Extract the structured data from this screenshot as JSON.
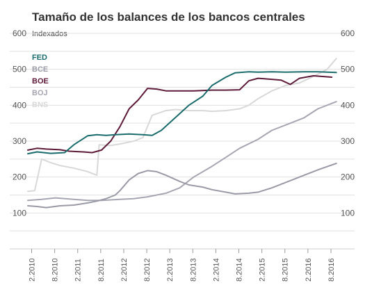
{
  "chart_data": {
    "type": "line",
    "title": "Tamaño de los balances de los bancos centrales",
    "ylabel": "Indexados",
    "xlabel": "",
    "ylim": [
      0,
      600
    ],
    "xlim": [
      2010.0,
      2016.75
    ],
    "yticks": [
      100,
      200,
      300,
      400,
      500,
      600
    ],
    "xticks": [
      {
        "label": "2.2010",
        "x": 2010.0833
      },
      {
        "label": "8.2010",
        "x": 2010.5833
      },
      {
        "label": "2.2011",
        "x": 2011.0833
      },
      {
        "label": "8.2011",
        "x": 2011.5833
      },
      {
        "label": "2.2012",
        "x": 2012.0833
      },
      {
        "label": "8.2012",
        "x": 2012.5833
      },
      {
        "label": "2.2013",
        "x": 2013.0833
      },
      {
        "label": "8.2013",
        "x": 2013.5833
      },
      {
        "label": "2.2014",
        "x": 2014.0833
      },
      {
        "label": "8.2014",
        "x": 2014.5833
      },
      {
        "label": "2.2015",
        "x": 2015.0833
      },
      {
        "label": "8.2015",
        "x": 2015.5833
      },
      {
        "label": "2.2016",
        "x": 2016.0833
      },
      {
        "label": "8.2016",
        "x": 2016.5833
      }
    ],
    "grid": true,
    "legend_position": "top-left",
    "series": [
      {
        "name": "FED",
        "color": "#1a6b6b",
        "x": [
          2010.0,
          2010.2,
          2010.5,
          2010.8,
          2011.0,
          2011.3,
          2011.5,
          2011.7,
          2011.9,
          2012.2,
          2012.5,
          2012.7,
          2012.9,
          2013.2,
          2013.5,
          2013.8,
          2014.0,
          2014.3,
          2014.5,
          2014.8,
          2015.0,
          2015.3,
          2015.6,
          2016.0,
          2016.3,
          2016.5,
          2016.7
        ],
        "y": [
          265,
          270,
          266,
          268,
          290,
          315,
          318,
          316,
          318,
          320,
          318,
          316,
          330,
          365,
          400,
          425,
          455,
          478,
          490,
          493,
          492,
          493,
          492,
          493,
          493,
          492,
          491
        ]
      },
      {
        "name": "BCE",
        "color": "#9a9aa6",
        "x": [
          2010.0,
          2010.2,
          2010.4,
          2010.7,
          2011.0,
          2011.3,
          2011.5,
          2011.7,
          2011.9,
          2012.0,
          2012.2,
          2012.4,
          2012.6,
          2012.8,
          2013.0,
          2013.3,
          2013.5,
          2013.8,
          2014.0,
          2014.3,
          2014.5,
          2014.8,
          2015.0,
          2015.3,
          2015.6,
          2016.0,
          2016.3,
          2016.7
        ],
        "y": [
          120,
          118,
          115,
          120,
          122,
          128,
          133,
          140,
          150,
          162,
          192,
          210,
          218,
          215,
          205,
          188,
          178,
          172,
          165,
          158,
          153,
          155,
          158,
          170,
          185,
          205,
          220,
          238
        ]
      },
      {
        "name": "BOE",
        "color": "#5c1a38",
        "x": [
          2010.0,
          2010.2,
          2010.4,
          2010.7,
          2010.9,
          2011.2,
          2011.4,
          2011.6,
          2011.8,
          2012.0,
          2012.2,
          2012.4,
          2012.6,
          2012.8,
          2013.0,
          2013.3,
          2013.6,
          2014.0,
          2014.3,
          2014.6,
          2014.8,
          2015.0,
          2015.3,
          2015.5,
          2015.7,
          2015.9,
          2016.2,
          2016.4,
          2016.6
        ],
        "y": [
          275,
          280,
          278,
          276,
          272,
          270,
          268,
          275,
          300,
          340,
          390,
          415,
          447,
          445,
          440,
          440,
          440,
          442,
          442,
          443,
          468,
          475,
          472,
          470,
          458,
          475,
          482,
          480,
          478
        ]
      },
      {
        "name": "BOJ",
        "color": "#a6a6b2",
        "x": [
          2010.0,
          2010.3,
          2010.6,
          2011.0,
          2011.3,
          2011.6,
          2012.0,
          2012.3,
          2012.6,
          2013.0,
          2013.3,
          2013.6,
          2014.0,
          2014.3,
          2014.6,
          2015.0,
          2015.3,
          2015.6,
          2016.0,
          2016.3,
          2016.7
        ],
        "y": [
          135,
          138,
          142,
          138,
          135,
          135,
          138,
          140,
          145,
          155,
          170,
          200,
          230,
          255,
          280,
          305,
          330,
          345,
          365,
          390,
          410
        ]
      },
      {
        "name": "BNS",
        "color": "#d8d8d8",
        "x": [
          2010.0,
          2010.15,
          2010.3,
          2010.5,
          2010.7,
          2011.0,
          2011.3,
          2011.5,
          2011.55,
          2011.8,
          2012.0,
          2012.3,
          2012.5,
          2012.7,
          2013.0,
          2013.2,
          2013.5,
          2013.8,
          2014.0,
          2014.3,
          2014.6,
          2014.8,
          2015.0,
          2015.3,
          2015.6,
          2015.9,
          2016.2,
          2016.5,
          2016.7
        ],
        "y": [
          160,
          162,
          250,
          240,
          232,
          225,
          215,
          205,
          290,
          288,
          292,
          300,
          310,
          372,
          385,
          388,
          385,
          385,
          383,
          385,
          390,
          400,
          418,
          440,
          455,
          462,
          480,
          500,
          530
        ]
      }
    ]
  }
}
